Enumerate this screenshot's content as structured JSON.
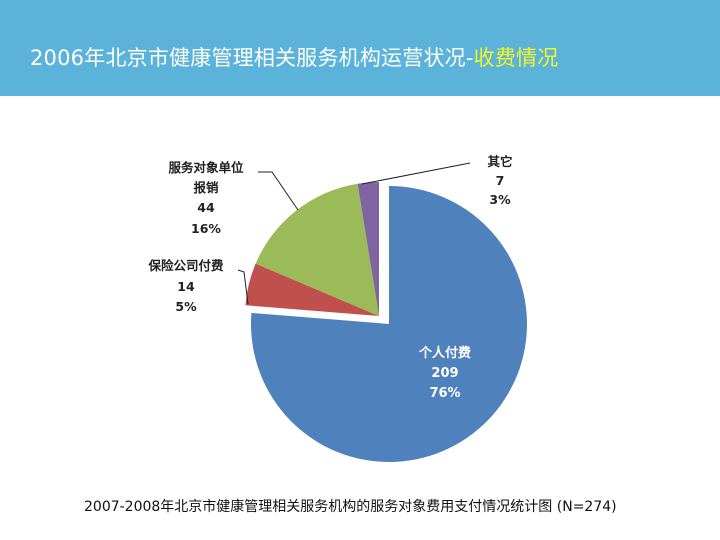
{
  "header": {
    "title_main": "2006年北京市健康管理相关服务机构运营状况-",
    "title_highlight": "收费情况"
  },
  "chart_data": {
    "type": "pie",
    "title": "",
    "total_label": "N=274",
    "slices": [
      {
        "label": "个人付费",
        "value": 209,
        "percent": "76%",
        "color": "#4f81bd",
        "exploded": true
      },
      {
        "label": "保险公司付费",
        "value": 14,
        "percent": "5%",
        "color": "#c0504d"
      },
      {
        "label": "服务对象单位报销",
        "label_lines": [
          "服务对象单位",
          "报销"
        ],
        "value": 44,
        "percent": "16%",
        "color": "#9bbb59"
      },
      {
        "label": "其它",
        "value": 7,
        "percent": "3%",
        "color": "#8064a2"
      }
    ]
  },
  "caption": "2007-2008年北京市健康管理相关服务机构的服务对象费用支付情况统计图 (N=274)"
}
